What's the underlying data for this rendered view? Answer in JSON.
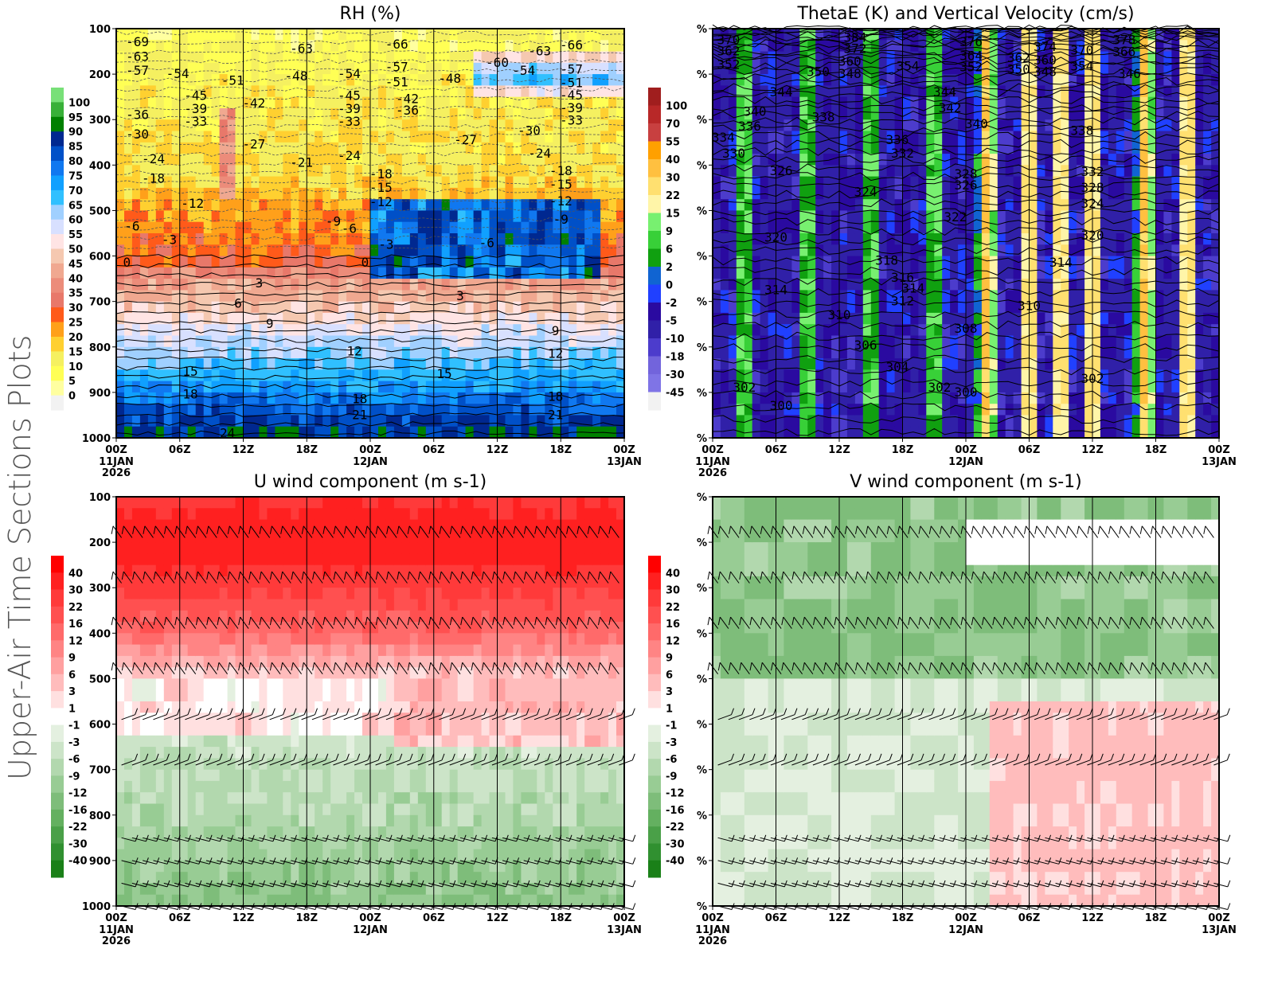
{
  "side_title": "Upper-Air Time Sections Plots",
  "time_axis": {
    "ticks": [
      "00Z",
      "06Z",
      "12Z",
      "18Z",
      "00Z",
      "06Z",
      "12Z",
      "18Z",
      "00Z"
    ],
    "dates": [
      {
        "tick": 0,
        "lines": [
          "11JAN",
          "2026"
        ]
      },
      {
        "tick": 4,
        "lines": [
          "12JAN"
        ]
      },
      {
        "tick": 8,
        "lines": [
          "13JAN"
        ]
      }
    ]
  },
  "chart_data": [
    {
      "id": "rh",
      "type": "heatmap",
      "title": "RH (%)",
      "xlabel": "",
      "ylabel": "",
      "yticks": [
        "100",
        "200",
        "300",
        "400",
        "500",
        "600",
        "700",
        "800",
        "900",
        "1000"
      ],
      "ylim": [
        100,
        1000
      ],
      "colorbar": {
        "levels": [
          "0",
          "5",
          "10",
          "15",
          "20",
          "25",
          "30",
          "35",
          "40",
          "45",
          "50",
          "55",
          "60",
          "65",
          "70",
          "75",
          "80",
          "85",
          "90",
          "95",
          "100"
        ],
        "colors": [
          "#f2f2f2",
          "#ffffa0",
          "#ffff55",
          "#f5f060",
          "#ffd030",
          "#ffa01a",
          "#ff5a1a",
          "#e8786a",
          "#ec8c7a",
          "#f0a890",
          "#f5c8b0",
          "#ffe4e4",
          "#d8e0ff",
          "#a0d0ff",
          "#30c0ff",
          "#10a0ff",
          "#1078f0",
          "#0050c8",
          "#002890",
          "#008000",
          "#38b038",
          "#78e078"
        ]
      },
      "contour_labels": [
        {
          "t": 2,
          "p": 130,
          "v": "-69"
        },
        {
          "t": 2,
          "p": 162,
          "v": "-63"
        },
        {
          "t": 2,
          "p": 193,
          "v": "-57"
        },
        {
          "t": 5.8,
          "p": 200,
          "v": "-54"
        },
        {
          "t": 11,
          "p": 215,
          "v": "-51"
        },
        {
          "t": 13,
          "p": 265,
          "v": "-42"
        },
        {
          "t": 7.5,
          "p": 248,
          "v": "-45"
        },
        {
          "t": 7.5,
          "p": 277,
          "v": "-39"
        },
        {
          "t": 7.5,
          "p": 305,
          "v": "-33"
        },
        {
          "t": 2,
          "p": 290,
          "v": "-36"
        },
        {
          "t": 2,
          "p": 333,
          "v": "-30"
        },
        {
          "t": 3.5,
          "p": 387,
          "v": "-24"
        },
        {
          "t": 3.5,
          "p": 430,
          "v": "-18"
        },
        {
          "t": 7.2,
          "p": 485,
          "v": "-12"
        },
        {
          "t": 1.5,
          "p": 535,
          "v": "-6"
        },
        {
          "t": 5,
          "p": 565,
          "v": "-3"
        },
        {
          "t": 1,
          "p": 615,
          "v": "0"
        },
        {
          "t": 13,
          "p": 355,
          "v": "-27"
        },
        {
          "t": 17,
          "p": 205,
          "v": "-48"
        },
        {
          "t": 17.5,
          "p": 145,
          "v": "-63"
        },
        {
          "t": 17.5,
          "p": 395,
          "v": "-21"
        },
        {
          "t": 20.5,
          "p": 525,
          "v": "-9"
        },
        {
          "t": 22,
          "p": 540,
          "v": "-6"
        },
        {
          "t": 22,
          "p": 200,
          "v": "-54"
        },
        {
          "t": 22,
          "p": 248,
          "v": "-45"
        },
        {
          "t": 22,
          "p": 277,
          "v": "-39"
        },
        {
          "t": 22,
          "p": 305,
          "v": "-33"
        },
        {
          "t": 22,
          "p": 380,
          "v": "-24"
        },
        {
          "t": 26.5,
          "p": 135,
          "v": "-66"
        },
        {
          "t": 26.5,
          "p": 185,
          "v": "-57"
        },
        {
          "t": 26.5,
          "p": 218,
          "v": "-51"
        },
        {
          "t": 27.5,
          "p": 255,
          "v": "-42"
        },
        {
          "t": 27.5,
          "p": 280,
          "v": "-36"
        },
        {
          "t": 25,
          "p": 420,
          "v": "-18"
        },
        {
          "t": 25,
          "p": 450,
          "v": "-15"
        },
        {
          "t": 25,
          "p": 482,
          "v": "-12"
        },
        {
          "t": 25.5,
          "p": 575,
          "v": "-3"
        },
        {
          "t": 31.5,
          "p": 210,
          "v": "-48"
        },
        {
          "t": 33,
          "p": 345,
          "v": "-27"
        },
        {
          "t": 35,
          "p": 572,
          "v": "-6"
        },
        {
          "t": 36,
          "p": 175,
          "v": "-60"
        },
        {
          "t": 38.5,
          "p": 193,
          "v": "-54"
        },
        {
          "t": 40,
          "p": 150,
          "v": "-63"
        },
        {
          "t": 39,
          "p": 325,
          "v": "-30"
        },
        {
          "t": 40,
          "p": 375,
          "v": "-24"
        },
        {
          "t": 42,
          "p": 413,
          "v": "-18"
        },
        {
          "t": 42,
          "p": 443,
          "v": "-15"
        },
        {
          "t": 42,
          "p": 480,
          "v": "-12"
        },
        {
          "t": 42,
          "p": 520,
          "v": "-9"
        },
        {
          "t": 43,
          "p": 137,
          "v": "-66"
        },
        {
          "t": 43,
          "p": 190,
          "v": "-57"
        },
        {
          "t": 43,
          "p": 220,
          "v": "-51"
        },
        {
          "t": 43,
          "p": 247,
          "v": "-45"
        },
        {
          "t": 43,
          "p": 275,
          "v": "-39"
        },
        {
          "t": 43,
          "p": 302,
          "v": "-33"
        },
        {
          "t": 23.5,
          "p": 615,
          "v": "0"
        },
        {
          "t": 13.5,
          "p": 660,
          "v": "3"
        },
        {
          "t": 11.5,
          "p": 705,
          "v": "6"
        },
        {
          "t": 14.5,
          "p": 750,
          "v": "9"
        },
        {
          "t": 22.5,
          "p": 810,
          "v": "12"
        },
        {
          "t": 7,
          "p": 855,
          "v": "15"
        },
        {
          "t": 7,
          "p": 905,
          "v": "18"
        },
        {
          "t": 23,
          "p": 915,
          "v": "18"
        },
        {
          "t": 23,
          "p": 950,
          "v": "21"
        },
        {
          "t": 32.5,
          "p": 688,
          "v": "3"
        },
        {
          "t": 31,
          "p": 860,
          "v": "15"
        },
        {
          "t": 41.5,
          "p": 765,
          "v": "9"
        },
        {
          "t": 41.5,
          "p": 815,
          "v": "12"
        },
        {
          "t": 41.5,
          "p": 910,
          "v": "18"
        },
        {
          "t": 41.5,
          "p": 950,
          "v": "21"
        },
        {
          "t": 10.5,
          "p": 990,
          "v": "24"
        }
      ]
    },
    {
      "id": "thetae",
      "type": "heatmap",
      "title": "ThetaE (K) and Vertical Velocity (cm/s)",
      "yticks": [
        "%",
        "%",
        "%",
        "%",
        "%",
        "%",
        "%",
        "%",
        "%",
        "%"
      ],
      "ylim": [
        100,
        1000
      ],
      "colorbar": {
        "levels": [
          "-45",
          "-30",
          "-18",
          "-10",
          "-5",
          "-2",
          "0",
          "2",
          "6",
          "9",
          "15",
          "22",
          "30",
          "40",
          "55",
          "70",
          "100"
        ],
        "colors": [
          "#f2f2f2",
          "#7f74e6",
          "#7264dc",
          "#4c3ccc",
          "#3020a8",
          "#2a0aa0",
          "#2040ff",
          "#1064d2",
          "#10a010",
          "#38d038",
          "#78f070",
          "#fff5a8",
          "#ffe070",
          "#ffc040",
          "#ffa000",
          "#c84040",
          "#b82828",
          "#a01e1e"
        ]
      },
      "contour_labels": [
        {
          "t": 1.5,
          "p": 125,
          "v": "370"
        },
        {
          "t": 1.5,
          "p": 150,
          "v": "362"
        },
        {
          "t": 1.5,
          "p": 180,
          "v": "352"
        },
        {
          "t": 13.5,
          "p": 120,
          "v": "384"
        },
        {
          "t": 13.5,
          "p": 145,
          "v": "372"
        },
        {
          "t": 13,
          "p": 173,
          "v": "360"
        },
        {
          "t": 13,
          "p": 200,
          "v": "348"
        },
        {
          "t": 10,
          "p": 195,
          "v": "350"
        },
        {
          "t": 18.5,
          "p": 183,
          "v": "354"
        },
        {
          "t": 24.5,
          "p": 130,
          "v": "376"
        },
        {
          "t": 24.5,
          "p": 160,
          "v": "364"
        },
        {
          "t": 24.5,
          "p": 185,
          "v": "352"
        },
        {
          "t": 29,
          "p": 165,
          "v": "362"
        },
        {
          "t": 29,
          "p": 190,
          "v": "350"
        },
        {
          "t": 31.5,
          "p": 140,
          "v": "374"
        },
        {
          "t": 31.5,
          "p": 170,
          "v": "360"
        },
        {
          "t": 31.5,
          "p": 195,
          "v": "348"
        },
        {
          "t": 35,
          "p": 148,
          "v": "370"
        },
        {
          "t": 35,
          "p": 183,
          "v": "354"
        },
        {
          "t": 39,
          "p": 125,
          "v": "378"
        },
        {
          "t": 39,
          "p": 152,
          "v": "366"
        },
        {
          "t": 39.5,
          "p": 200,
          "v": "346"
        },
        {
          "t": 6.5,
          "p": 240,
          "v": "344"
        },
        {
          "t": 4,
          "p": 283,
          "v": "340"
        },
        {
          "t": 3.5,
          "p": 315,
          "v": "336"
        },
        {
          "t": 1,
          "p": 340,
          "v": "334"
        },
        {
          "t": 2,
          "p": 375,
          "v": "330"
        },
        {
          "t": 6.5,
          "p": 413,
          "v": "326"
        },
        {
          "t": 10.5,
          "p": 295,
          "v": "338"
        },
        {
          "t": 22,
          "p": 240,
          "v": "344"
        },
        {
          "t": 22.5,
          "p": 275,
          "v": "342"
        },
        {
          "t": 25,
          "p": 310,
          "v": "340"
        },
        {
          "t": 17.5,
          "p": 345,
          "v": "336"
        },
        {
          "t": 18,
          "p": 375,
          "v": "332"
        },
        {
          "t": 14.5,
          "p": 460,
          "v": "324"
        },
        {
          "t": 24,
          "p": 420,
          "v": "328"
        },
        {
          "t": 24,
          "p": 445,
          "v": "326"
        },
        {
          "t": 23,
          "p": 515,
          "v": "322"
        },
        {
          "t": 6,
          "p": 560,
          "v": "320"
        },
        {
          "t": 16.5,
          "p": 610,
          "v": "318"
        },
        {
          "t": 18,
          "p": 648,
          "v": "316"
        },
        {
          "t": 19,
          "p": 672,
          "v": "314"
        },
        {
          "t": 18,
          "p": 700,
          "v": "312"
        },
        {
          "t": 6,
          "p": 675,
          "v": "314"
        },
        {
          "t": 12,
          "p": 730,
          "v": "310"
        },
        {
          "t": 35,
          "p": 325,
          "v": "338"
        },
        {
          "t": 36,
          "p": 415,
          "v": "332"
        },
        {
          "t": 36,
          "p": 450,
          "v": "328"
        },
        {
          "t": 36,
          "p": 485,
          "v": "324"
        },
        {
          "t": 36,
          "p": 555,
          "v": "320"
        },
        {
          "t": 33,
          "p": 615,
          "v": "314"
        },
        {
          "t": 30,
          "p": 710,
          "v": "310"
        },
        {
          "t": 24,
          "p": 760,
          "v": "308"
        },
        {
          "t": 14.5,
          "p": 797,
          "v": "306"
        },
        {
          "t": 17.5,
          "p": 845,
          "v": "304"
        },
        {
          "t": 3,
          "p": 890,
          "v": "302"
        },
        {
          "t": 21.5,
          "p": 890,
          "v": "302"
        },
        {
          "t": 36,
          "p": 870,
          "v": "302"
        },
        {
          "t": 6.5,
          "p": 930,
          "v": "300"
        },
        {
          "t": 24,
          "p": 900,
          "v": "300"
        }
      ]
    },
    {
      "id": "u",
      "type": "heatmap",
      "title": "U wind component (m s-1)",
      "yticks": [
        "100",
        "200",
        "300",
        "400",
        "500",
        "600",
        "700",
        "800",
        "900",
        "1000"
      ],
      "ylim": [
        100,
        1000
      ],
      "colorbar": {
        "levels": [
          "40",
          "30",
          "22",
          "16",
          "12",
          "9",
          "6",
          "3",
          "1",
          "-1",
          "-3",
          "-6",
          "-9",
          "-12",
          "-16",
          "-22",
          "-30",
          "-40"
        ],
        "colors": [
          "#ff0000",
          "#ff2020",
          "#ff3a3a",
          "#ff5050",
          "#ff6a6a",
          "#ff8484",
          "#ffa0a0",
          "#ffbcbc",
          "#ffe0e0",
          "#ffffff",
          "#e4f0e0",
          "#cce4c8",
          "#b2d8ae",
          "#98cc94",
          "#7ebd7a",
          "#64b060",
          "#4aa048",
          "#309030",
          "#1a8018"
        ]
      },
      "barb_levels": [
        190,
        290,
        390,
        490,
        590,
        690,
        850,
        900,
        950,
        1000
      ]
    },
    {
      "id": "v",
      "type": "heatmap",
      "title": "V wind component (m s-1)",
      "yticks": [
        "%",
        "%",
        "%",
        "%",
        "%",
        "%",
        "%",
        "%",
        "%",
        "%"
      ],
      "ylim": [
        100,
        1000
      ],
      "colorbar": {
        "levels": [
          "40",
          "30",
          "22",
          "16",
          "12",
          "9",
          "6",
          "3",
          "1",
          "-1",
          "-3",
          "-6",
          "-9",
          "-12",
          "-16",
          "-22",
          "-30",
          "-40"
        ],
        "colors": [
          "#ff0000",
          "#ff2020",
          "#ff3a3a",
          "#ff5050",
          "#ff6a6a",
          "#ff8484",
          "#ffa0a0",
          "#ffbcbc",
          "#ffe0e0",
          "#ffffff",
          "#e4f0e0",
          "#cce4c8",
          "#b2d8ae",
          "#98cc94",
          "#7ebd7a",
          "#64b060",
          "#4aa048",
          "#309030",
          "#1a8018"
        ]
      },
      "barb_levels": [
        190,
        290,
        390,
        490,
        590,
        690,
        850,
        900,
        950,
        1000
      ]
    }
  ]
}
